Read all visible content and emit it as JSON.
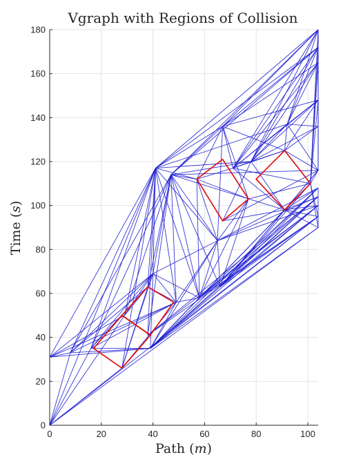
{
  "chart_data": {
    "type": "line",
    "title": "Vgraph with Regions of Collision",
    "xlabel_main": "Path",
    "xlabel_unit": "m",
    "ylabel_main": "Time",
    "ylabel_unit": "s",
    "xlim": [
      0,
      104
    ],
    "ylim": [
      0,
      180
    ],
    "xticks": [
      0,
      20,
      40,
      60,
      80,
      100
    ],
    "yticks": [
      0,
      20,
      40,
      60,
      80,
      100,
      120,
      140,
      160,
      180
    ],
    "grid": true,
    "edge_color": "#1f1fd0",
    "region_color": "#e01010",
    "regions": [
      [
        [
          28,
          26
        ],
        [
          17,
          35
        ],
        [
          28,
          50
        ],
        [
          39,
          41
        ]
      ],
      [
        [
          39,
          41
        ],
        [
          28,
          50
        ],
        [
          38,
          63
        ],
        [
          48,
          56
        ]
      ],
      [
        [
          67,
          93
        ],
        [
          57,
          112
        ],
        [
          67,
          121
        ],
        [
          77,
          103
        ]
      ],
      [
        [
          91,
          98
        ],
        [
          80,
          112
        ],
        [
          91,
          125
        ],
        [
          101,
          110
        ]
      ]
    ],
    "vertices": [
      [
        0,
        0
      ],
      [
        0,
        31
      ],
      [
        8,
        33
      ],
      [
        16,
        35
      ],
      [
        28,
        26
      ],
      [
        39,
        35
      ],
      [
        29,
        50
      ],
      [
        38,
        41
      ],
      [
        38,
        63
      ],
      [
        49,
        56
      ],
      [
        40,
        69
      ],
      [
        41,
        117
      ],
      [
        47,
        114
      ],
      [
        58,
        58
      ],
      [
        65,
        84
      ],
      [
        66,
        63
      ],
      [
        57,
        112
      ],
      [
        67,
        136
      ],
      [
        71,
        117
      ],
      [
        77,
        103
      ],
      [
        67,
        93
      ],
      [
        78,
        120
      ],
      [
        91,
        98
      ],
      [
        92,
        137
      ],
      [
        91,
        125
      ],
      [
        101,
        110
      ],
      [
        104,
        116
      ],
      [
        104,
        180
      ],
      [
        104,
        172
      ],
      [
        104,
        165
      ],
      [
        104,
        148
      ],
      [
        104,
        136
      ],
      [
        104,
        108
      ],
      [
        104,
        104
      ],
      [
        104,
        100
      ],
      [
        104,
        95
      ],
      [
        104,
        90
      ]
    ],
    "edges": [
      [
        0,
        1
      ],
      [
        1,
        11
      ],
      [
        1,
        2
      ],
      [
        1,
        10
      ],
      [
        1,
        9
      ],
      [
        1,
        5
      ],
      [
        1,
        6
      ],
      [
        0,
        4
      ],
      [
        0,
        3
      ],
      [
        0,
        6
      ],
      [
        0,
        2
      ],
      [
        0,
        11
      ],
      [
        0,
        35
      ],
      [
        0,
        36
      ],
      [
        2,
        10
      ],
      [
        2,
        11
      ],
      [
        2,
        12
      ],
      [
        2,
        9
      ],
      [
        2,
        8
      ],
      [
        3,
        10
      ],
      [
        3,
        11
      ],
      [
        3,
        12
      ],
      [
        3,
        9
      ],
      [
        3,
        8
      ],
      [
        4,
        10
      ],
      [
        4,
        11
      ],
      [
        4,
        8
      ],
      [
        6,
        11
      ],
      [
        6,
        10
      ],
      [
        6,
        12
      ],
      [
        7,
        11
      ],
      [
        7,
        12
      ],
      [
        8,
        11
      ],
      [
        8,
        12
      ],
      [
        9,
        11
      ],
      [
        9,
        12
      ],
      [
        10,
        11
      ],
      [
        10,
        12
      ],
      [
        10,
        13
      ],
      [
        10,
        14
      ],
      [
        5,
        32
      ],
      [
        5,
        33
      ],
      [
        5,
        34
      ],
      [
        5,
        35
      ],
      [
        5,
        36
      ],
      [
        5,
        22
      ],
      [
        5,
        25
      ],
      [
        5,
        13
      ],
      [
        5,
        14
      ],
      [
        5,
        15
      ],
      [
        7,
        33
      ],
      [
        7,
        34
      ],
      [
        7,
        35
      ],
      [
        11,
        17
      ],
      [
        11,
        21
      ],
      [
        11,
        23
      ],
      [
        11,
        27
      ],
      [
        11,
        28
      ],
      [
        11,
        16
      ],
      [
        11,
        14
      ],
      [
        11,
        13
      ],
      [
        12,
        14
      ],
      [
        12,
        13
      ],
      [
        12,
        15
      ],
      [
        12,
        17
      ],
      [
        12,
        16
      ],
      [
        12,
        19
      ],
      [
        12,
        27
      ],
      [
        12,
        28
      ],
      [
        13,
        14
      ],
      [
        13,
        16
      ],
      [
        14,
        15
      ],
      [
        14,
        17
      ],
      [
        14,
        16
      ],
      [
        15,
        22
      ],
      [
        15,
        25
      ],
      [
        15,
        32
      ],
      [
        15,
        33
      ],
      [
        15,
        34
      ],
      [
        15,
        35
      ],
      [
        15,
        19
      ],
      [
        15,
        26
      ],
      [
        16,
        17
      ],
      [
        16,
        18
      ],
      [
        17,
        18
      ],
      [
        17,
        19
      ],
      [
        17,
        24
      ],
      [
        17,
        27
      ],
      [
        17,
        28
      ],
      [
        17,
        29
      ],
      [
        17,
        30
      ],
      [
        18,
        21
      ],
      [
        18,
        23
      ],
      [
        18,
        27
      ],
      [
        18,
        28
      ],
      [
        18,
        29
      ],
      [
        18,
        30
      ],
      [
        18,
        24
      ],
      [
        19,
        22
      ],
      [
        19,
        20
      ],
      [
        19,
        25
      ],
      [
        20,
        22
      ],
      [
        20,
        26
      ],
      [
        21,
        23
      ],
      [
        21,
        27
      ],
      [
        21,
        28
      ],
      [
        21,
        29
      ],
      [
        21,
        30
      ],
      [
        21,
        31
      ],
      [
        21,
        24
      ],
      [
        22,
        26
      ],
      [
        22,
        25
      ],
      [
        22,
        32
      ],
      [
        22,
        33
      ],
      [
        22,
        34
      ],
      [
        22,
        21
      ],
      [
        23,
        27
      ],
      [
        23,
        28
      ],
      [
        23,
        29
      ],
      [
        23,
        30
      ],
      [
        23,
        31
      ],
      [
        23,
        26
      ],
      [
        24,
        26
      ],
      [
        24,
        23
      ],
      [
        25,
        26
      ],
      [
        25,
        27
      ],
      [
        25,
        28
      ],
      [
        25,
        29
      ],
      [
        25,
        30
      ],
      [
        26,
        27
      ],
      [
        26,
        28
      ],
      [
        26,
        29
      ],
      [
        26,
        30
      ],
      [
        26,
        31
      ],
      [
        27,
        28
      ],
      [
        28,
        29
      ],
      [
        29,
        30
      ],
      [
        30,
        31
      ],
      [
        31,
        26
      ],
      [
        32,
        33
      ],
      [
        33,
        34
      ],
      [
        34,
        35
      ],
      [
        35,
        36
      ],
      [
        13,
        32
      ],
      [
        13,
        33
      ],
      [
        13,
        34
      ],
      [
        13,
        35
      ],
      [
        14,
        32
      ],
      [
        14,
        33
      ],
      [
        14,
        34
      ],
      [
        22,
        35
      ],
      [
        22,
        36
      ],
      [
        25,
        35
      ],
      [
        25,
        36
      ],
      [
        16,
        20
      ],
      [
        16,
        19
      ],
      [
        18,
        22
      ],
      [
        18,
        25
      ],
      [
        20,
        21
      ],
      [
        24,
        30
      ],
      [
        24,
        31
      ],
      [
        3,
        5
      ],
      [
        2,
        5
      ],
      [
        6,
        8
      ],
      [
        8,
        9
      ],
      [
        8,
        10
      ],
      [
        9,
        10
      ],
      [
        9,
        14
      ],
      [
        9,
        13
      ],
      [
        5,
        9
      ],
      [
        5,
        10
      ],
      [
        4,
        9
      ],
      [
        12,
        26
      ],
      [
        12,
        21
      ],
      [
        14,
        19
      ],
      [
        13,
        19
      ]
    ]
  }
}
